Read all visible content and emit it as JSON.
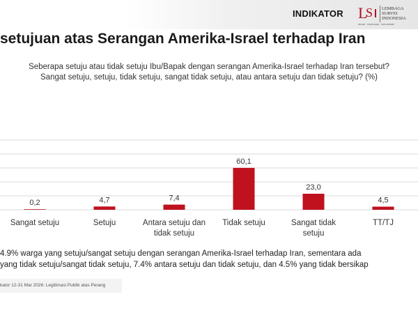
{
  "header": {
    "brand": "INDIKATOR",
    "partner_name_line1": "LEMBAGA",
    "partner_name_line2": "SURVEI",
    "partner_name_line3": "INDONESIA",
    "partner_tagline": "akurat · terpercaya · bermanfaat"
  },
  "question": {
    "line1": "Seberapa setuju atau tidak setuju Ibu/Bapak dengan serangan Amerika-Israel terhadap Iran tersebut?",
    "line2": "Sangat setuju, setuju, tidak setuju, sangat tidak setuju, atau antara setuju dan tidak setuju? (%)"
  },
  "summary": {
    "line1": "4.9% warga yang setuju/sangat setuju dengan serangan Amerika-Israel terhadap Iran, sementara ada",
    "line2": "yang tidak setuju/sangat tidak setuju, 7.4% antara setuju dan tidak setuju, dan 4.5% yang tidak bersikap"
  },
  "footer": {
    "source": "kator 12-31 Mar 2026: Legitimasi Publik atas Perang"
  },
  "colors": {
    "bar": "#c0111f",
    "grid": "#d9d9d9"
  },
  "chart_data": {
    "type": "bar",
    "title": "setujuan atas Serangan Amerika-Israel terhadap Iran",
    "categories": [
      [
        "Sangat setuju"
      ],
      [
        "Setuju"
      ],
      [
        "Antara setuju dan",
        "tidak setuju"
      ],
      [
        "Tidak setuju"
      ],
      [
        "Sangat tidak",
        "setuju"
      ],
      [
        "TT/TJ"
      ]
    ],
    "values": [
      0.2,
      4.7,
      7.4,
      60.1,
      23.0,
      4.5
    ],
    "value_labels": [
      "0,2",
      "4,7",
      "7,4",
      "60,1",
      "23,0",
      "4,5"
    ],
    "ylim": [
      0,
      100
    ],
    "grid": true,
    "legend": false
  }
}
